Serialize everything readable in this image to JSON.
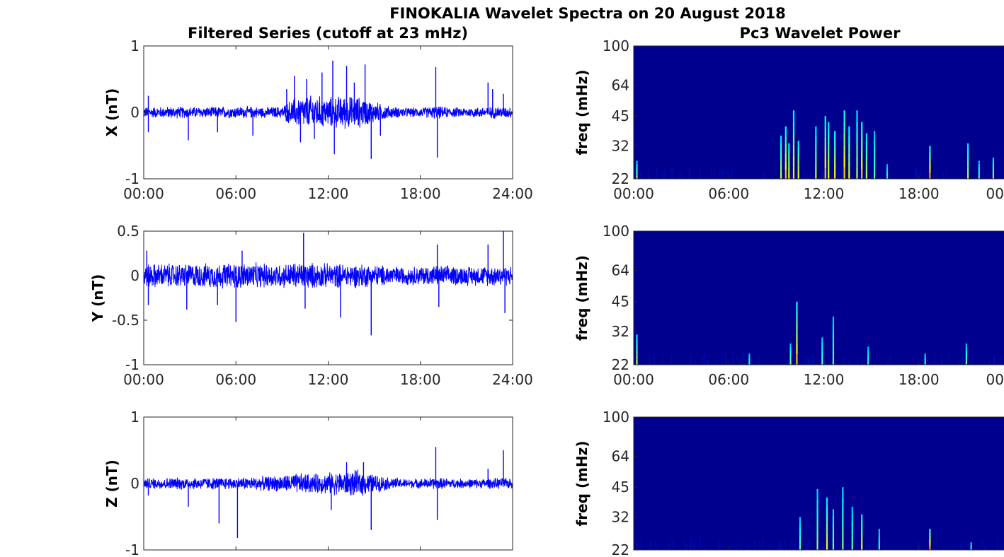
{
  "figure": {
    "title": "FINOKALIA Wavelet Spectra on 20 August 2018",
    "left_column_title": "Filtered Series (cutoff at 23 mHz)",
    "right_column_title": "Pc3 Wavelet Power"
  },
  "chart_data": [
    {
      "type": "line",
      "component": "X",
      "ylabel": "X (nT)",
      "ylim": [
        -1,
        1
      ],
      "yticks": [
        "1",
        "0",
        "-1"
      ],
      "xticks": [
        "00:00",
        "06:00",
        "12:00",
        "18:00",
        "24:00"
      ],
      "xlim_hours": [
        0,
        24
      ],
      "line_color": "#0000ff",
      "envelope": {
        "x_hours": [
          0,
          2,
          4,
          6,
          8,
          9,
          9.5,
          10,
          11,
          12,
          13,
          14,
          15,
          16,
          17,
          18,
          19,
          20,
          21,
          22,
          23,
          24
        ],
        "amp": [
          0.09,
          0.1,
          0.09,
          0.1,
          0.09,
          0.1,
          0.2,
          0.26,
          0.28,
          0.25,
          0.28,
          0.26,
          0.18,
          0.1,
          0.08,
          0.08,
          0.11,
          0.08,
          0.08,
          0.09,
          0.1,
          0.09
        ]
      },
      "spikes": [
        {
          "t": 0.3,
          "v": 0.25
        },
        {
          "t": 0.3,
          "v": -0.3
        },
        {
          "t": 2.9,
          "v": -0.42
        },
        {
          "t": 4.8,
          "v": -0.3
        },
        {
          "t": 7.1,
          "v": -0.35
        },
        {
          "t": 9.3,
          "v": 0.35
        },
        {
          "t": 9.8,
          "v": 0.55
        },
        {
          "t": 10.2,
          "v": -0.45
        },
        {
          "t": 10.6,
          "v": 0.5
        },
        {
          "t": 11.1,
          "v": -0.4
        },
        {
          "t": 11.6,
          "v": 0.6
        },
        {
          "t": 12.3,
          "v": 0.78
        },
        {
          "t": 12.4,
          "v": -0.63
        },
        {
          "t": 13.2,
          "v": 0.7
        },
        {
          "t": 13.7,
          "v": 0.45
        },
        {
          "t": 14.4,
          "v": 0.72
        },
        {
          "t": 14.8,
          "v": -0.7
        },
        {
          "t": 15.4,
          "v": -0.35
        },
        {
          "t": 19.0,
          "v": 0.68
        },
        {
          "t": 19.1,
          "v": -0.68
        },
        {
          "t": 22.4,
          "v": 0.45
        },
        {
          "t": 22.7,
          "v": 0.35
        },
        {
          "t": 23.4,
          "v": 0.28
        }
      ]
    },
    {
      "type": "line",
      "component": "Y",
      "ylabel": "Y (nT)",
      "ylim": [
        -1,
        0.5
      ],
      "yticks": [
        "0.5",
        "0",
        "-0.5",
        "-1"
      ],
      "xticks": [
        "00:00",
        "06:00",
        "12:00",
        "18:00",
        "24:00"
      ],
      "xlim_hours": [
        0,
        24
      ],
      "line_color": "#0000ff",
      "envelope": {
        "x_hours": [
          0,
          2,
          4,
          6,
          8,
          9,
          10,
          11,
          12,
          13,
          14,
          15,
          16,
          17,
          18,
          19,
          20,
          21,
          22,
          23,
          24
        ],
        "amp": [
          0.15,
          0.15,
          0.15,
          0.16,
          0.15,
          0.15,
          0.17,
          0.16,
          0.15,
          0.15,
          0.15,
          0.14,
          0.12,
          0.11,
          0.12,
          0.13,
          0.12,
          0.12,
          0.12,
          0.13,
          0.12
        ]
      },
      "spikes": [
        {
          "t": 0.2,
          "v": 0.28
        },
        {
          "t": 0.3,
          "v": -0.33
        },
        {
          "t": 2.8,
          "v": -0.38
        },
        {
          "t": 4.8,
          "v": -0.33
        },
        {
          "t": 6.0,
          "v": -0.52
        },
        {
          "t": 6.4,
          "v": 0.28
        },
        {
          "t": 10.4,
          "v": 0.48
        },
        {
          "t": 10.5,
          "v": -0.37
        },
        {
          "t": 12.8,
          "v": -0.47
        },
        {
          "t": 14.8,
          "v": -0.67
        },
        {
          "t": 19.1,
          "v": 0.35
        },
        {
          "t": 19.2,
          "v": -0.35
        },
        {
          "t": 22.4,
          "v": 0.35
        },
        {
          "t": 23.4,
          "v": 0.5
        },
        {
          "t": 23.5,
          "v": -0.42
        }
      ]
    },
    {
      "type": "line",
      "component": "Z",
      "ylabel": "Z (nT)",
      "ylim": [
        -1,
        1
      ],
      "yticks": [
        "1",
        "0",
        "-1"
      ],
      "xticks": [],
      "xlim_hours": [
        0,
        24
      ],
      "line_color": "#0000ff",
      "envelope": {
        "x_hours": [
          0,
          2,
          4,
          6,
          8,
          9,
          10,
          11,
          12,
          13,
          14,
          15,
          16,
          17,
          18,
          19,
          20,
          21,
          22,
          23,
          24
        ],
        "amp": [
          0.09,
          0.1,
          0.1,
          0.1,
          0.12,
          0.14,
          0.17,
          0.16,
          0.18,
          0.2,
          0.22,
          0.15,
          0.1,
          0.08,
          0.08,
          0.1,
          0.08,
          0.08,
          0.08,
          0.09,
          0.09
        ]
      },
      "spikes": [
        {
          "t": 0.3,
          "v": -0.18
        },
        {
          "t": 2.9,
          "v": -0.35
        },
        {
          "t": 4.9,
          "v": -0.6
        },
        {
          "t": 6.1,
          "v": -0.82
        },
        {
          "t": 12.2,
          "v": -0.4
        },
        {
          "t": 13.2,
          "v": 0.32
        },
        {
          "t": 14.3,
          "v": 0.32
        },
        {
          "t": 14.8,
          "v": -0.7
        },
        {
          "t": 19.0,
          "v": 0.55
        },
        {
          "t": 19.1,
          "v": -0.55
        },
        {
          "t": 22.4,
          "v": 0.22
        },
        {
          "t": 23.4,
          "v": 0.5
        }
      ]
    },
    {
      "type": "heatmap",
      "component": "X",
      "ylabel": "freq (mHz)",
      "ylim_mHz": [
        22,
        100
      ],
      "yscale": "log",
      "yticks": [
        22,
        32,
        45,
        64,
        100
      ],
      "xticks": [
        "00:00",
        "06:00",
        "12:00",
        "18:00",
        "00"
      ],
      "xlim_hours": [
        0,
        24
      ],
      "background_color": "#00008f",
      "bursts": [
        {
          "t": 0.2,
          "top": 27,
          "i": 0.5
        },
        {
          "t": 9.3,
          "top": 36,
          "i": 0.6
        },
        {
          "t": 9.6,
          "top": 40,
          "i": 0.9
        },
        {
          "t": 9.8,
          "top": 33,
          "i": 0.7
        },
        {
          "t": 10.1,
          "top": 48,
          "i": 0.8
        },
        {
          "t": 10.4,
          "top": 34,
          "i": 0.7
        },
        {
          "t": 11.5,
          "top": 40,
          "i": 0.6
        },
        {
          "t": 12.1,
          "top": 45,
          "i": 0.9
        },
        {
          "t": 12.3,
          "top": 42,
          "i": 0.7
        },
        {
          "t": 12.7,
          "top": 38,
          "i": 0.8
        },
        {
          "t": 13.3,
          "top": 48,
          "i": 0.9
        },
        {
          "t": 13.6,
          "top": 40,
          "i": 0.7
        },
        {
          "t": 14.1,
          "top": 48,
          "i": 0.6
        },
        {
          "t": 14.4,
          "top": 42,
          "i": 0.9
        },
        {
          "t": 14.7,
          "top": 37,
          "i": 0.6
        },
        {
          "t": 15.2,
          "top": 38,
          "i": 0.4
        },
        {
          "t": 16.0,
          "top": 26,
          "i": 0.3
        },
        {
          "t": 18.7,
          "top": 32,
          "i": 1.0
        },
        {
          "t": 21.1,
          "top": 33,
          "i": 0.6
        },
        {
          "t": 21.8,
          "top": 27,
          "i": 0.4
        },
        {
          "t": 22.7,
          "top": 28,
          "i": 0.5
        }
      ]
    },
    {
      "type": "heatmap",
      "component": "Y",
      "ylabel": "freq (mHz)",
      "ylim_mHz": [
        22,
        100
      ],
      "yscale": "log",
      "yticks": [
        22,
        32,
        45,
        64,
        100
      ],
      "xticks": [
        "00:00",
        "06:00",
        "12:00",
        "18:00",
        "00"
      ],
      "xlim_hours": [
        0,
        24
      ],
      "background_color": "#00008f",
      "bursts": [
        {
          "t": 0.2,
          "top": 31,
          "i": 0.6
        },
        {
          "t": 7.3,
          "top": 25,
          "i": 0.3
        },
        {
          "t": 9.9,
          "top": 28,
          "i": 0.5
        },
        {
          "t": 10.3,
          "top": 45,
          "i": 0.9
        },
        {
          "t": 11.9,
          "top": 30,
          "i": 0.4
        },
        {
          "t": 12.6,
          "top": 38,
          "i": 0.4
        },
        {
          "t": 14.8,
          "top": 27,
          "i": 0.3
        },
        {
          "t": 18.4,
          "top": 25,
          "i": 0.3
        },
        {
          "t": 21.0,
          "top": 28,
          "i": 0.4
        }
      ]
    },
    {
      "type": "heatmap",
      "component": "Z",
      "ylabel": "freq (mHz)",
      "ylim_mHz": [
        22,
        100
      ],
      "yscale": "log",
      "yticks": [
        22,
        32,
        45,
        64,
        100
      ],
      "xticks": [],
      "xlim_hours": [
        0,
        24
      ],
      "background_color": "#00008f",
      "bursts": [
        {
          "t": 10.5,
          "top": 32,
          "i": 0.4
        },
        {
          "t": 11.6,
          "top": 44,
          "i": 0.5
        },
        {
          "t": 12.2,
          "top": 40,
          "i": 0.7
        },
        {
          "t": 12.6,
          "top": 35,
          "i": 0.5
        },
        {
          "t": 13.2,
          "top": 45,
          "i": 0.5
        },
        {
          "t": 13.8,
          "top": 36,
          "i": 0.4
        },
        {
          "t": 14.4,
          "top": 33,
          "i": 0.7
        },
        {
          "t": 15.5,
          "top": 28,
          "i": 0.3
        },
        {
          "t": 18.7,
          "top": 28,
          "i": 1.0
        },
        {
          "t": 21.3,
          "top": 24,
          "i": 0.3
        }
      ]
    }
  ]
}
